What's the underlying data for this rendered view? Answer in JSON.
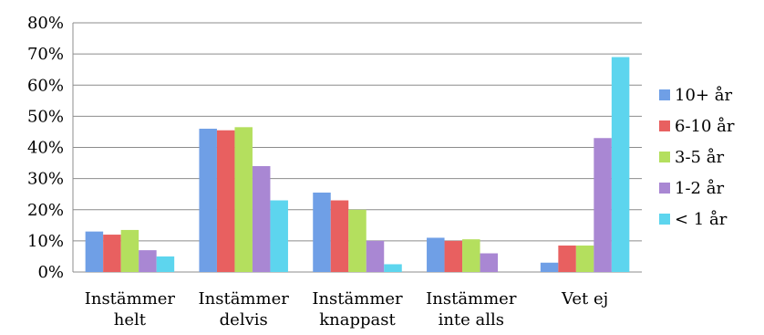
{
  "chart_data": {
    "type": "bar",
    "title": "",
    "xlabel": "",
    "ylabel": "",
    "ylim": [
      0,
      80
    ],
    "yticks": [
      "0%",
      "10%",
      "20%",
      "30%",
      "40%",
      "50%",
      "60%",
      "70%",
      "80%"
    ],
    "grid": "horizontal",
    "legend_position": "right",
    "categories": [
      [
        "Instämmer",
        "helt"
      ],
      [
        "Instämmer",
        "delvis"
      ],
      [
        "Instämmer",
        "knappast"
      ],
      [
        "Instämmer",
        "inte alls"
      ],
      [
        "Vet ej"
      ]
    ],
    "series": [
      {
        "name": "10+ år",
        "color": "#6f9fe6",
        "values": [
          13,
          46,
          25.5,
          11,
          3
        ]
      },
      {
        "name": "6-10 år",
        "color": "#e86060",
        "values": [
          12,
          45.5,
          23,
          10,
          8.5
        ]
      },
      {
        "name": "3-5 år",
        "color": "#b4df5e",
        "values": [
          13.5,
          46.5,
          20,
          10.5,
          8.5
        ]
      },
      {
        "name": "1-2 år",
        "color": "#a987d3",
        "values": [
          7,
          34,
          10,
          6,
          43
        ]
      },
      {
        "name": "< 1 år",
        "color": "#5dd5ee",
        "values": [
          5,
          23,
          2.5,
          0,
          69
        ]
      }
    ]
  }
}
